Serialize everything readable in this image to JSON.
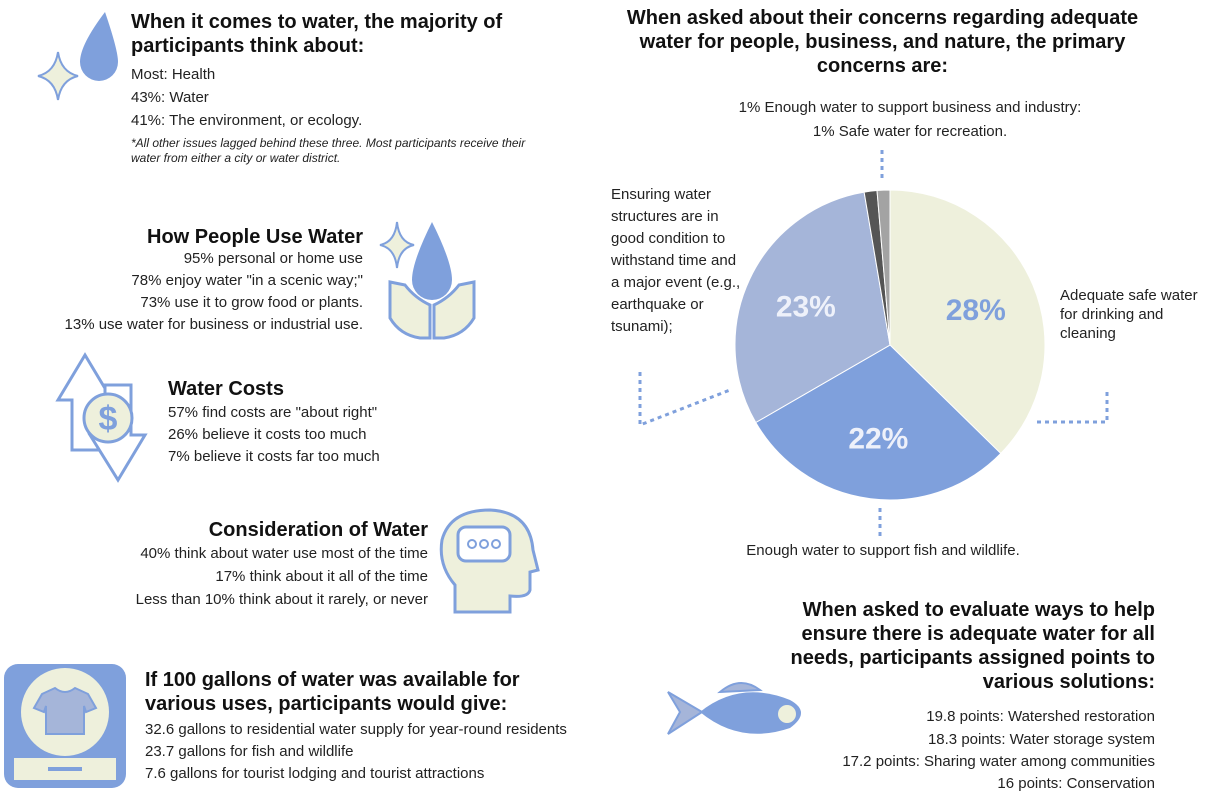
{
  "sections": {
    "thoughts": {
      "title": "When it comes to water, the majority of participants think about:",
      "lines": [
        "Most: Health",
        "43%: Water",
        "41%: The environment, or ecology."
      ],
      "note": "*All other issues lagged behind these three. Most participants receive their water from either a city or water district."
    },
    "use": {
      "title": "How People Use Water",
      "lines": [
        "95% personal or home use",
        "78% enjoy water \"in a scenic way;\"",
        "73% use it to grow food or plants.",
        "13% use water for business or industrial use."
      ]
    },
    "costs": {
      "title": "Water Costs",
      "lines": [
        "57% find costs are \"about right\"",
        "26% believe it costs too much",
        "7% believe it costs far too much"
      ]
    },
    "consideration": {
      "title": "Consideration of Water",
      "lines": [
        "40% think about water use most of the time",
        "17% think about it all of the time",
        "Less than 10% think about it rarely, or never"
      ]
    },
    "gallons": {
      "title": "If 100 gallons of water was available for various uses, participants would give:",
      "lines": [
        "32.6 gallons to residential water supply for year-round residents",
        "23.7 gallons for fish and wildlife",
        "7.6 gallons for tourist lodging and tourist attractions"
      ]
    },
    "solutions": {
      "title": "When asked to evaluate ways to help ensure there is adequate water for all needs, participants assigned points to various solutions:",
      "lines": [
        "19.8 points: Watershed restoration",
        "18.3 points: Water storage system",
        "17.2 points: Sharing water among communities",
        "16 points: Conservation"
      ]
    }
  },
  "chart_data": {
    "type": "pie",
    "title": "When asked about their concerns regarding adequate water for people, business, and nature, the primary concerns are:",
    "categories": [
      "Adequate safe water for drinking and cleaning",
      "Enough water to support fish and wildlife.",
      "Ensuring  water structures are in good condition to withstand time and a major event (e.g., earthquake or tsunami);",
      "Enough water to support business and industry:",
      "Safe water for recreation."
    ],
    "values": [
      28,
      22,
      23,
      1,
      1
    ],
    "value_labels": [
      "28%",
      "22%",
      "23%",
      "1%",
      "1%"
    ],
    "colors": [
      "#eef0dc",
      "#7fa0dc",
      "#a5b5d9",
      "#555555",
      "#a3a3a3"
    ]
  }
}
